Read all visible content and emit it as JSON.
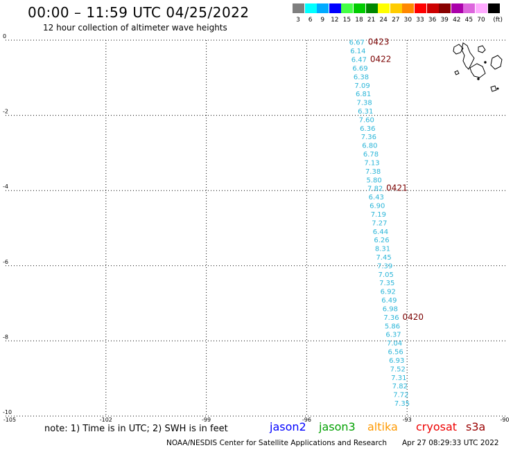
{
  "header": {
    "title": "00:00 – 11:59 UTC 04/25/2022",
    "subtitle": "12 hour collection of altimeter wave heights"
  },
  "scale": {
    "unit_label": "(ft)",
    "bins": [
      {
        "label": "3",
        "color": "#7f7f7f"
      },
      {
        "label": "6",
        "color": "#00ffff"
      },
      {
        "label": "9",
        "color": "#00aaff"
      },
      {
        "label": "12",
        "color": "#0000ff"
      },
      {
        "label": "15",
        "color": "#44ff44"
      },
      {
        "label": "18",
        "color": "#00cc00"
      },
      {
        "label": "21",
        "color": "#008800"
      },
      {
        "label": "24",
        "color": "#ffff00"
      },
      {
        "label": "27",
        "color": "#ffcc00"
      },
      {
        "label": "30",
        "color": "#ff8800"
      },
      {
        "label": "33",
        "color": "#ff0000"
      },
      {
        "label": "36",
        "color": "#cc0000"
      },
      {
        "label": "39",
        "color": "#880000"
      },
      {
        "label": "42",
        "color": "#aa00aa"
      },
      {
        "label": "45",
        "color": "#dd66dd"
      },
      {
        "label": "70",
        "color": "#ffaaff"
      },
      {
        "label": "",
        "color": "#000000"
      }
    ]
  },
  "map": {
    "lon_range": [
      -105,
      -90
    ],
    "lat_range": [
      -10,
      0
    ],
    "lon_ticks": [
      "-105",
      "-102",
      "-99",
      "-96",
      "-93",
      "-90"
    ],
    "lat_ticks": [
      "0",
      "-2",
      "-4",
      "-6",
      "-8",
      "-10"
    ],
    "track_color": "#2ab5d8",
    "date_color": "#7a0000",
    "swh_values": [
      "6.67",
      "6.14",
      "6.47",
      "6.69",
      "6.38",
      "7.09",
      "6.81",
      "7.38",
      "6.31",
      "7.60",
      "6.36",
      "7.36",
      "6.80",
      "6.78",
      "7.13",
      "7.38",
      "5.80",
      "7.82",
      "6.43",
      "6.90",
      "7.19",
      "7.27",
      "6.44",
      "6.26",
      "8.31",
      "7.45",
      "7.39",
      "7.05",
      "7.35",
      "6.92",
      "6.49",
      "6.98",
      "7.36",
      "5.86",
      "6.37",
      "7.04",
      "6.56",
      "6.93",
      "7.52",
      "7.31",
      "7.82",
      "7.72",
      "7.35"
    ],
    "date_labels": [
      {
        "text": "0423",
        "index": 0
      },
      {
        "text": "0422",
        "index": 2
      },
      {
        "text": "0421",
        "index": 17
      },
      {
        "text": "0420",
        "index": 32
      }
    ]
  },
  "note": "note: 1) Time is in UTC; 2) SWH is in feet",
  "satellites": [
    {
      "name": "jason2",
      "color": "#0000ff"
    },
    {
      "name": "jason3",
      "color": "#00a000"
    },
    {
      "name": "altika",
      "color": "#ff9900"
    },
    {
      "name": "cryosat",
      "color": "#ee0000"
    },
    {
      "name": "s3a",
      "color": "#990000"
    }
  ],
  "footer": {
    "credit": "NOAA/NESDIS Center for Satellite Applications and Research",
    "timestamp": "Apr 27 08:29:33 UTC 2022"
  }
}
